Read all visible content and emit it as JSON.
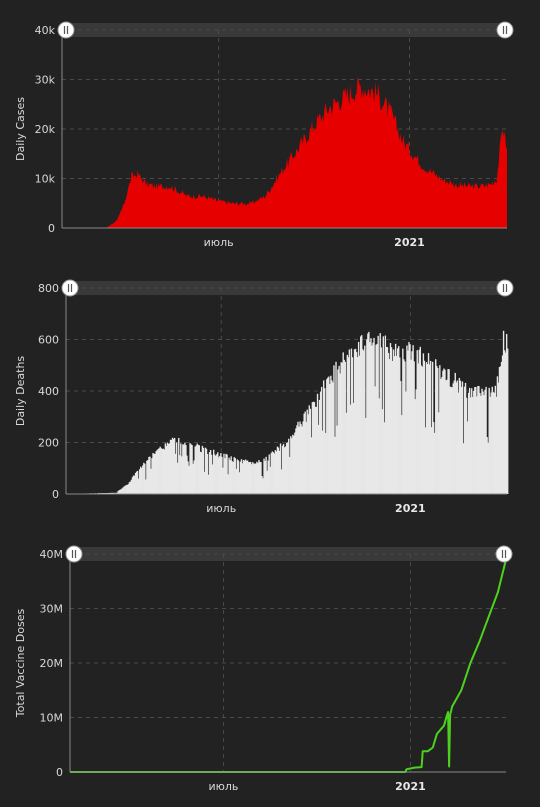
{
  "chart_data": [
    {
      "type": "area",
      "ylabel": "Daily Cases",
      "ylim": [
        0,
        40000
      ],
      "yticks": [
        0,
        10000,
        20000,
        30000,
        40000
      ],
      "yticklabels": [
        "0",
        "10k",
        "20k",
        "30k",
        "40k"
      ],
      "xlim": [
        "2020-02-01",
        "2021-04-05"
      ],
      "xticks": [
        "2020-07-01",
        "2021-01-01"
      ],
      "xticklabels": [
        "июль",
        "2021"
      ],
      "grid": true,
      "color": "#e60000",
      "x": [
        "2020-02-01",
        "2020-03-15",
        "2020-03-25",
        "2020-04-01",
        "2020-04-08",
        "2020-04-14",
        "2020-04-22",
        "2020-05-01",
        "2020-05-15",
        "2020-06-01",
        "2020-06-15",
        "2020-07-01",
        "2020-07-15",
        "2020-08-01",
        "2020-08-15",
        "2020-09-01",
        "2020-09-15",
        "2020-10-01",
        "2020-10-15",
        "2020-11-01",
        "2020-11-15",
        "2020-12-01",
        "2020-12-15",
        "2020-12-25",
        "2021-01-01",
        "2021-01-15",
        "2021-02-01",
        "2021-02-15",
        "2021-03-01",
        "2021-03-10",
        "2021-03-20",
        "2021-03-26",
        "2021-04-01",
        "2021-04-05"
      ],
      "y": [
        0,
        100,
        1500,
        5000,
        10500,
        11000,
        9000,
        8500,
        8500,
        6500,
        6500,
        5500,
        5000,
        5000,
        6500,
        12000,
        16000,
        21000,
        24500,
        27000,
        29000,
        27500,
        23000,
        18000,
        16000,
        12500,
        10000,
        8800,
        8500,
        8500,
        8900,
        10000,
        21000,
        16000
      ]
    },
    {
      "type": "bar",
      "ylabel": "Daily Deaths",
      "ylim": [
        0,
        800
      ],
      "yticks": [
        0,
        200,
        400,
        600,
        800
      ],
      "yticklabels": [
        "0",
        "200",
        "400",
        "600",
        "800"
      ],
      "xlim": [
        "2020-02-01",
        "2021-04-05"
      ],
      "xticks": [
        "2020-07-01",
        "2021-01-01"
      ],
      "xticklabels": [
        "июль",
        "2021"
      ],
      "grid": true,
      "color": "#e8e8e8",
      "x": [
        "2020-02-01",
        "2020-03-20",
        "2020-04-01",
        "2020-04-10",
        "2020-04-20",
        "2020-05-01",
        "2020-05-15",
        "2020-06-01",
        "2020-06-15",
        "2020-07-01",
        "2020-07-15",
        "2020-08-01",
        "2020-08-15",
        "2020-09-01",
        "2020-09-15",
        "2020-10-01",
        "2020-10-15",
        "2020-11-01",
        "2020-11-15",
        "2020-12-01",
        "2020-12-15",
        "2021-01-01",
        "2021-01-15",
        "2021-02-01",
        "2021-02-15",
        "2021-03-01",
        "2021-03-15",
        "2021-03-25",
        "2021-04-01",
        "2021-04-05"
      ],
      "y": [
        0,
        5,
        40,
        90,
        130,
        170,
        210,
        190,
        170,
        150,
        130,
        120,
        140,
        200,
        270,
        360,
        460,
        540,
        580,
        590,
        550,
        560,
        520,
        470,
        430,
        390,
        390,
        400,
        600,
        570
      ]
    },
    {
      "type": "line",
      "ylabel": "Total Vaccine Doses",
      "ylim": [
        0,
        40000000
      ],
      "yticks": [
        0,
        10000000,
        20000000,
        30000000,
        40000000
      ],
      "yticklabels": [
        "0",
        "10M",
        "20M",
        "30M",
        "40M"
      ],
      "xlim": [
        "2020-02-01",
        "2021-04-05"
      ],
      "xticks": [
        "2020-07-01",
        "2021-01-01"
      ],
      "xticklabels": [
        "июль",
        "2021"
      ],
      "grid": true,
      "color": "#4cd11d",
      "x": [
        "2020-02-01",
        "2020-12-27",
        "2020-12-28",
        "2021-01-05",
        "2021-01-12",
        "2021-01-13",
        "2021-01-17",
        "2021-01-18",
        "2021-01-23",
        "2021-01-27",
        "2021-02-03",
        "2021-02-06",
        "2021-02-07",
        "2021-02-08",
        "2021-02-09",
        "2021-02-10",
        "2021-02-11",
        "2021-02-20",
        "2021-03-01",
        "2021-03-10",
        "2021-03-20",
        "2021-03-28",
        "2021-04-05"
      ],
      "y": [
        0,
        0,
        500000,
        800000,
        900000,
        3800000,
        3800000,
        3800000,
        4500000,
        7000000,
        8500000,
        10500000,
        11000000,
        1000000,
        10500000,
        11200000,
        12000000,
        15000000,
        20000000,
        24000000,
        29000000,
        33000000,
        39000000
      ]
    }
  ]
}
